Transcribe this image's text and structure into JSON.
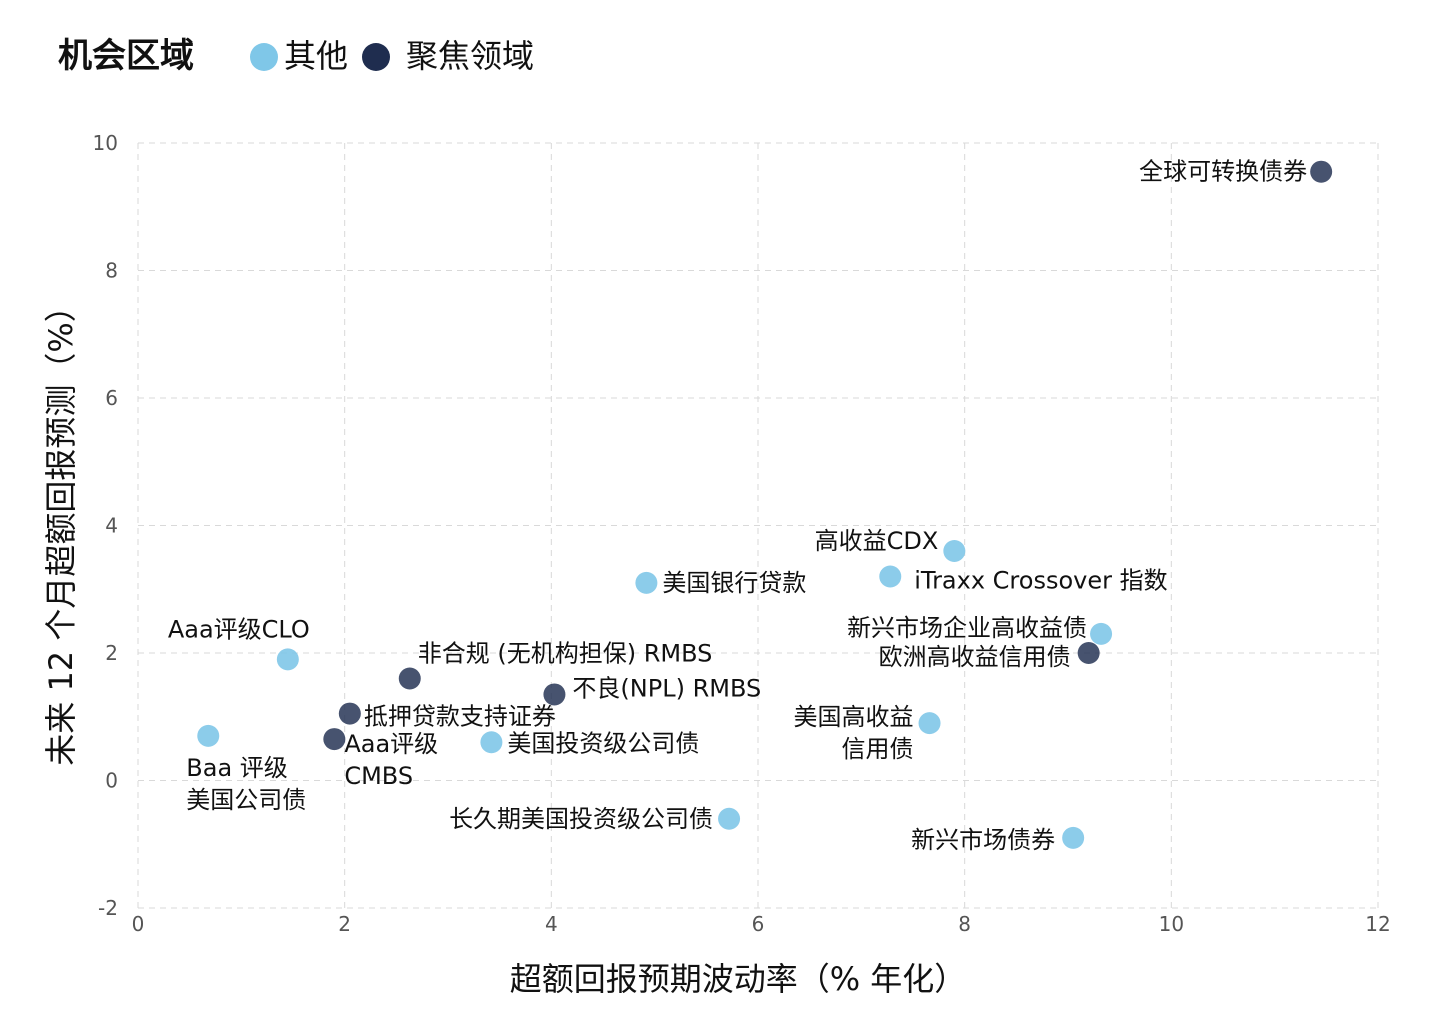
{
  "legend": {
    "title": "机会区域",
    "items": [
      {
        "name": "其他",
        "color": "#7fc7e8"
      },
      {
        "name": "聚焦领域",
        "color": "#1f2d4f"
      }
    ]
  },
  "chart_data": {
    "type": "scatter",
    "xlabel": "超额回报预期波动率（% 年化）",
    "ylabel": "未来 12 个月超额回报预测（%）",
    "xlim": [
      0,
      12
    ],
    "ylim": [
      -2,
      10
    ],
    "x_ticks": [
      "0",
      "2",
      "4",
      "6",
      "8",
      "10",
      "12"
    ],
    "y_ticks": [
      "-2",
      "0",
      "2",
      "4",
      "6",
      "8",
      "10"
    ],
    "grid": true,
    "legend_position": "top-left",
    "series": [
      {
        "name": "其他",
        "color": "#7fc7e8",
        "points": [
          {
            "label": [
              "Aaa评级CLO"
            ],
            "x": 1.45,
            "y": 1.9
          },
          {
            "label": [
              "Baa 评级",
              "美国公司债"
            ],
            "x": 0.68,
            "y": 0.7
          },
          {
            "label": [
              "美国投资级公司债"
            ],
            "x": 3.42,
            "y": 0.6
          },
          {
            "label": [
              "长久期美国投资级公司债"
            ],
            "x": 5.72,
            "y": -0.6
          },
          {
            "label": [
              "美国银行贷款"
            ],
            "x": 4.92,
            "y": 3.1
          },
          {
            "label": [
              "高收益CDX"
            ],
            "x": 7.9,
            "y": 3.6
          },
          {
            "label": [
              "iTraxx Crossover 指数"
            ],
            "x": 7.28,
            "y": 3.2
          },
          {
            "label": [
              "新兴市场企业高收益债"
            ],
            "x": 9.32,
            "y": 2.3
          },
          {
            "label": [
              "美国高收益",
              "信用债"
            ],
            "x": 7.66,
            "y": 0.9
          },
          {
            "label": [
              "新兴市场债券"
            ],
            "x": 9.05,
            "y": -0.9
          }
        ]
      },
      {
        "name": "聚焦领域",
        "color": "#1f2d4f",
        "points": [
          {
            "label": [
              "全球可转换债券"
            ],
            "x": 11.45,
            "y": 9.55
          },
          {
            "label": [
              "欧洲高收益信用债"
            ],
            "x": 9.2,
            "y": 2.0
          },
          {
            "label": [
              "非合规 (无机构担保) RMBS"
            ],
            "x": 2.63,
            "y": 1.6
          },
          {
            "label": [
              "不良(NPL) RMBS"
            ],
            "x": 4.03,
            "y": 1.35
          },
          {
            "label": [
              "抵押贷款支持证券"
            ],
            "x": 2.05,
            "y": 1.05
          },
          {
            "label": [
              "Aaa评级",
              "CMBS"
            ],
            "x": 1.9,
            "y": 0.65
          }
        ]
      }
    ]
  }
}
